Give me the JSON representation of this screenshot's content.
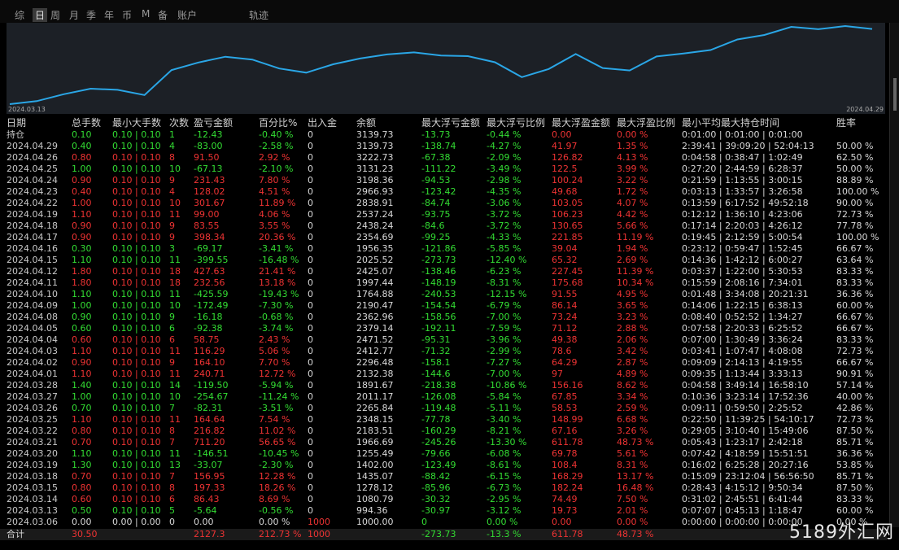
{
  "tabs": [
    "综",
    "日",
    "周",
    "月",
    "季",
    "年",
    "币",
    "M",
    "备",
    "账户",
    "轨迹"
  ],
  "active_tab": 1,
  "chart": {
    "start_label": "2024.03.13",
    "end_label": "2024.04.29",
    "color": "#2aa6e6"
  },
  "table": {
    "headers": [
      "日期",
      "总手数",
      "最小大手数",
      "次数",
      "盈亏金额",
      "百分比%",
      "出入金",
      "余额",
      "最大浮亏金额",
      "最大浮亏比例",
      "最大浮盈金额",
      "最大浮盈比例",
      "最小平均最大持仓时间",
      "胜率"
    ],
    "holding": [
      "持仓",
      "0.10",
      "0.10 | 0.10",
      "1",
      "-12.43",
      "-0.40 %",
      "0",
      "3139.73",
      "-13.73",
      "-0.44 %",
      "0.00",
      "0.00 %",
      "0:01:00 | 0:01:00 | 0:01:00",
      null
    ],
    "rows": [
      [
        "2024.04.29",
        "0.40",
        "0.10 | 0.10",
        "4",
        "-83.00",
        "-2.58 %",
        "0",
        "3139.73",
        "-138.74",
        "-4.27 %",
        "41.97",
        "1.35 %",
        "2:39:41 | 39:09:20 | 52:04:13",
        "50.00 %"
      ],
      [
        "2024.04.26",
        "0.80",
        "0.10 | 0.10",
        "8",
        "91.50",
        "2.92 %",
        "0",
        "3222.73",
        "-67.38",
        "-2.09 %",
        "126.82",
        "4.13 %",
        "0:04:58 | 0:38:47 | 1:02:49",
        "62.50 %"
      ],
      [
        "2024.04.25",
        "1.00",
        "0.10 | 0.10",
        "10",
        "-67.13",
        "-2.10 %",
        "0",
        "3131.23",
        "-111.22",
        "-3.49 %",
        "122.5",
        "3.99 %",
        "0:27:20 | 2:44:59 | 6:28:37",
        "50.00 %"
      ],
      [
        "2024.04.24",
        "0.90",
        "0.10 | 0.10",
        "9",
        "231.43",
        "7.80 %",
        "0",
        "3198.36",
        "-94.53",
        "-2.98 %",
        "100.24",
        "3.22 %",
        "0:21:59 | 1:13:55 | 3:00:15",
        "88.89 %"
      ],
      [
        "2024.04.23",
        "0.40",
        "0.10 | 0.10",
        "4",
        "128.02",
        "4.51 %",
        "0",
        "2966.93",
        "-123.42",
        "-4.35 %",
        "49.68",
        "1.72 %",
        "0:03:13 | 1:33:57 | 3:26:58",
        "100.00 %"
      ],
      [
        "2024.04.22",
        "1.00",
        "0.10 | 0.10",
        "10",
        "301.67",
        "11.89 %",
        "0",
        "2838.91",
        "-84.74",
        "-3.06 %",
        "103.05",
        "4.07 %",
        "0:13:59 | 6:17:52 | 49:52:18",
        "90.00 %"
      ],
      [
        "2024.04.19",
        "1.10",
        "0.10 | 0.10",
        "11",
        "99.00",
        "4.06 %",
        "0",
        "2537.24",
        "-93.75",
        "-3.72 %",
        "106.23",
        "4.42 %",
        "0:12:12 | 1:36:10 | 4:23:06",
        "72.73 %"
      ],
      [
        "2024.04.18",
        "0.90",
        "0.10 | 0.10",
        "9",
        "83.55",
        "3.55 %",
        "0",
        "2438.24",
        "-84.6",
        "-3.72 %",
        "130.65",
        "5.66 %",
        "0:17:14 | 2:20:03 | 4:26:12",
        "77.78 %"
      ],
      [
        "2024.04.17",
        "0.90",
        "0.10 | 0.10",
        "9",
        "398.34",
        "20.36 %",
        "0",
        "2354.69",
        "-99.25",
        "-4.33 %",
        "221.85",
        "11.19 %",
        "0:19:45 | 2:12:59 | 5:00:54",
        "100.00 %"
      ],
      [
        "2024.04.16",
        "0.30",
        "0.10 | 0.10",
        "3",
        "-69.17",
        "-3.41 %",
        "0",
        "1956.35",
        "-121.86",
        "-5.85 %",
        "39.04",
        "1.94 %",
        "0:23:12 | 0:59:47 | 1:52:45",
        "66.67 %"
      ],
      [
        "2024.04.15",
        "1.10",
        "0.10 | 0.10",
        "11",
        "-399.55",
        "-16.48 %",
        "0",
        "2025.52",
        "-273.73",
        "-12.40 %",
        "65.32",
        "2.69 %",
        "0:14:36 | 1:42:12 | 6:00:27",
        "63.64 %"
      ],
      [
        "2024.04.12",
        "1.80",
        "0.10 | 0.10",
        "18",
        "427.63",
        "21.41 %",
        "0",
        "2425.07",
        "-138.46",
        "-6.23 %",
        "227.45",
        "11.39 %",
        "0:03:37 | 1:22:00 | 5:30:53",
        "83.33 %"
      ],
      [
        "2024.04.11",
        "1.80",
        "0.10 | 0.10",
        "18",
        "232.56",
        "13.18 %",
        "0",
        "1997.44",
        "-148.19",
        "-8.31 %",
        "175.68",
        "10.34 %",
        "0:15:59 | 2:08:16 | 7:34:01",
        "83.33 %"
      ],
      [
        "2024.04.10",
        "1.10",
        "0.10 | 0.10",
        "11",
        "-425.59",
        "-19.43 %",
        "0",
        "1764.88",
        "-240.53",
        "-12.15 %",
        "91.55",
        "4.95 %",
        "0:01:48 | 3:34:08 | 20:21:31",
        "36.36 %"
      ],
      [
        "2024.04.09",
        "1.00",
        "0.10 | 0.10",
        "10",
        "-172.49",
        "-7.30 %",
        "0",
        "2190.47",
        "-154.54",
        "-6.79 %",
        "86.14",
        "3.65 %",
        "0:14:06 | 1:22:15 | 6:38:13",
        "60.00 %"
      ],
      [
        "2024.04.08",
        "0.90",
        "0.10 | 0.10",
        "9",
        "-16.18",
        "-0.68 %",
        "0",
        "2362.96",
        "-158.56",
        "-7.00 %",
        "73.24",
        "3.23 %",
        "0:08:40 | 0:52:52 | 1:34:27",
        "66.67 %"
      ],
      [
        "2024.04.05",
        "0.60",
        "0.10 | 0.10",
        "6",
        "-92.38",
        "-3.74 %",
        "0",
        "2379.14",
        "-192.11",
        "-7.59 %",
        "71.12",
        "2.88 %",
        "0:07:58 | 2:20:33 | 6:25:52",
        "66.67 %"
      ],
      [
        "2024.04.04",
        "0.60",
        "0.10 | 0.10",
        "6",
        "58.75",
        "2.43 %",
        "0",
        "2471.52",
        "-95.31",
        "-3.96 %",
        "49.38",
        "2.06 %",
        "0:07:00 | 1:30:49 | 3:36:24",
        "83.33 %"
      ],
      [
        "2024.04.03",
        "1.10",
        "0.10 | 0.10",
        "11",
        "116.29",
        "5.06 %",
        "0",
        "2412.77",
        "-71.32",
        "-2.99 %",
        "78.6",
        "3.42 %",
        "0:03:41 | 1:07:47 | 4:08:08",
        "72.73 %"
      ],
      [
        "2024.04.02",
        "0.90",
        "0.10 | 0.10",
        "9",
        "164.10",
        "7.70 %",
        "0",
        "2296.48",
        "-158.1",
        "-7.27 %",
        "64.29",
        "2.87 %",
        "0:09:09 | 2:14:13 | 4:19:55",
        "66.67 %"
      ],
      [
        "2024.04.01",
        "1.10",
        "0.10 | 0.10",
        "11",
        "240.71",
        "12.72 %",
        "0",
        "2132.38",
        "-144.6",
        "-7.00 %",
        "97",
        "4.89 %",
        "0:09:35 | 1:13:44 | 3:33:13",
        "90.91 %"
      ],
      [
        "2024.03.28",
        "1.40",
        "0.10 | 0.10",
        "14",
        "-119.50",
        "-5.94 %",
        "0",
        "1891.67",
        "-218.38",
        "-10.86 %",
        "156.16",
        "8.62 %",
        "0:04:58 | 3:49:14 | 16:58:10",
        "57.14 %"
      ],
      [
        "2024.03.27",
        "1.00",
        "0.10 | 0.10",
        "10",
        "-254.67",
        "-11.24 %",
        "0",
        "2011.17",
        "-126.08",
        "-5.84 %",
        "67.85",
        "3.34 %",
        "0:10:36 | 3:23:14 | 17:52:36",
        "40.00 %"
      ],
      [
        "2024.03.26",
        "0.70",
        "0.10 | 0.10",
        "7",
        "-82.31",
        "-3.51 %",
        "0",
        "2265.84",
        "-119.48",
        "-5.11 %",
        "58.53",
        "2.59 %",
        "0:09:11 | 0:59:50 | 2:25:52",
        "42.86 %"
      ],
      [
        "2024.03.25",
        "1.10",
        "0.10 | 0.10",
        "11",
        "164.64",
        "7.54 %",
        "0",
        "2348.15",
        "-77.78",
        "-3.40 %",
        "148.99",
        "6.68 %",
        "0:22:50 | 11:39:25 | 54:10:17",
        "72.73 %"
      ],
      [
        "2024.03.22",
        "0.80",
        "0.10 | 0.10",
        "8",
        "216.82",
        "11.02 %",
        "0",
        "2183.51",
        "-160.29",
        "-8.21 %",
        "67.16",
        "3.26 %",
        "0:29:05 | 3:10:40 | 15:49:06",
        "87.50 %"
      ],
      [
        "2024.03.21",
        "0.70",
        "0.10 | 0.10",
        "7",
        "711.20",
        "56.65 %",
        "0",
        "1966.69",
        "-245.26",
        "-13.30 %",
        "611.78",
        "48.73 %",
        "0:05:43 | 1:23:17 | 2:42:18",
        "85.71 %"
      ],
      [
        "2024.03.20",
        "1.10",
        "0.10 | 0.10",
        "11",
        "-146.51",
        "-10.45 %",
        "0",
        "1255.49",
        "-79.66",
        "-6.08 %",
        "69.78",
        "5.61 %",
        "0:07:42 | 4:18:59 | 15:51:51",
        "36.36 %"
      ],
      [
        "2024.03.19",
        "1.30",
        "0.10 | 0.10",
        "13",
        "-33.07",
        "-2.30 %",
        "0",
        "1402.00",
        "-123.49",
        "-8.61 %",
        "108.4",
        "8.31 %",
        "0:16:02 | 6:25:28 | 20:27:16",
        "53.85 %"
      ],
      [
        "2024.03.18",
        "0.70",
        "0.10 | 0.10",
        "7",
        "156.95",
        "12.28 %",
        "0",
        "1435.07",
        "-88.42",
        "-6.15 %",
        "168.29",
        "13.17 %",
        "0:15:09 | 23:12:04 | 56:56:50",
        "85.71 %"
      ],
      [
        "2024.03.15",
        "0.80",
        "0.10 | 0.10",
        "8",
        "197.33",
        "18.26 %",
        "0",
        "1278.12",
        "-85.96",
        "-6.73 %",
        "182.24",
        "16.48 %",
        "0:28:43 | 4:15:12 | 9:50:34",
        "87.50 %"
      ],
      [
        "2024.03.14",
        "0.60",
        "0.10 | 0.10",
        "6",
        "86.43",
        "8.69 %",
        "0",
        "1080.79",
        "-30.32",
        "-2.95 %",
        "74.49",
        "7.50 %",
        "0:31:02 | 2:45:51 | 6:41:44",
        "83.33 %"
      ],
      [
        "2024.03.13",
        "0.50",
        "0.10 | 0.10",
        "5",
        "-5.64",
        "-0.56 %",
        "0",
        "994.36",
        "-30.97",
        "-3.12 %",
        "19.73",
        "2.01 %",
        "0:07:07 | 0:45:13 | 1:18:47",
        "60.00 %"
      ],
      [
        "2024.03.06",
        "0.00",
        "0.00 | 0.00",
        "0",
        "0.00",
        "0.00 %",
        "1000",
        "1000.00",
        "0",
        "0.00 %",
        "0.00",
        "0.00 %",
        "0:00:00 | 0:00:00 | 0:00:00",
        "0.00 %"
      ]
    ],
    "total": [
      "合计",
      "30.50",
      null,
      null,
      "2127.3",
      "212.73 %",
      "1000",
      null,
      "-273.73",
      "-13.3 %",
      "611.78",
      "48.73 %",
      null,
      null
    ]
  },
  "watermark": "5189外汇网"
}
